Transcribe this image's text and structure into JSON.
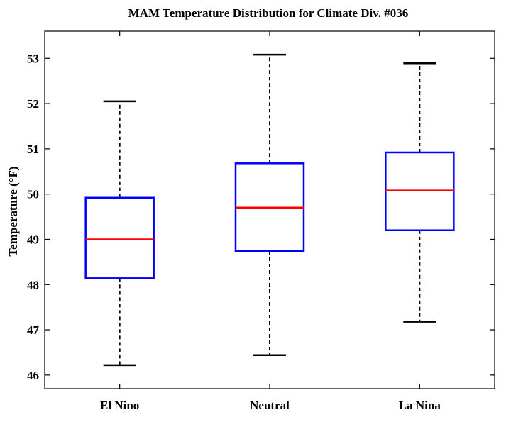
{
  "chart_data": {
    "type": "boxplot",
    "title": "MAM Temperature Distribution for Climate Div. #036",
    "xlabel": "",
    "ylabel": "Temperature (°F)",
    "ylim": [
      45.7,
      53.6
    ],
    "yticks": [
      46,
      47,
      48,
      49,
      50,
      51,
      52,
      53
    ],
    "grid": false,
    "categories": [
      "El Nino",
      "Neutral",
      "La Nina"
    ],
    "boxes": [
      {
        "category": "El Nino",
        "whisker_low": 46.22,
        "q1": 48.14,
        "median": 49.0,
        "q3": 49.92,
        "whisker_high": 52.05
      },
      {
        "category": "Neutral",
        "whisker_low": 46.44,
        "q1": 48.74,
        "median": 49.7,
        "q3": 50.68,
        "whisker_high": 53.08
      },
      {
        "category": "La Nina",
        "whisker_low": 47.18,
        "q1": 49.2,
        "median": 50.08,
        "q3": 50.92,
        "whisker_high": 52.89
      }
    ],
    "colors": {
      "box": "#0000ff",
      "median": "#ff0000",
      "whisker": "#000000"
    }
  }
}
